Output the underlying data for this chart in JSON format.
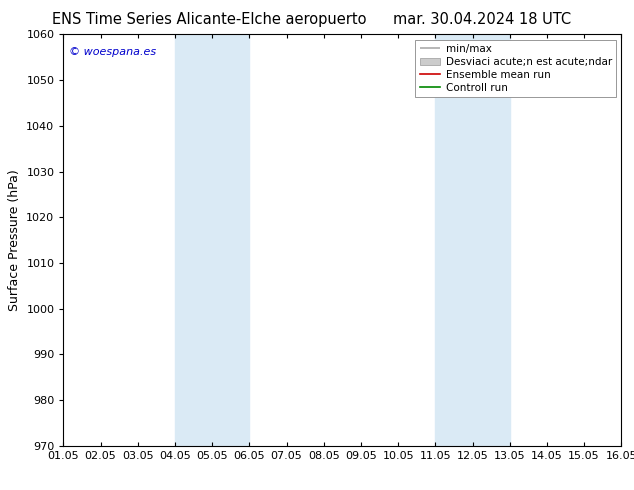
{
  "title_left": "ENS Time Series Alicante-Elche aeropuerto",
  "title_right": "mar. 30.04.2024 18 UTC",
  "ylabel": "Surface Pressure (hPa)",
  "ylim": [
    970,
    1060
  ],
  "yticks": [
    970,
    980,
    990,
    1000,
    1010,
    1020,
    1030,
    1040,
    1050,
    1060
  ],
  "xlim": [
    0,
    15
  ],
  "xtick_positions": [
    0,
    1,
    2,
    3,
    4,
    5,
    6,
    7,
    8,
    9,
    10,
    11,
    12,
    13,
    14,
    15
  ],
  "xtick_labels": [
    "01.05",
    "02.05",
    "03.05",
    "04.05",
    "05.05",
    "06.05",
    "07.05",
    "08.05",
    "09.05",
    "10.05",
    "11.05",
    "12.05",
    "13.05",
    "14.05",
    "15.05",
    "16.05"
  ],
  "shaded_regions": [
    {
      "xmin": 3.0,
      "xmax": 5.0,
      "color": "#daeaf5"
    },
    {
      "xmin": 10.0,
      "xmax": 12.0,
      "color": "#daeaf5"
    }
  ],
  "watermark": "© woespana.es",
  "watermark_color": "#0000cc",
  "legend_label_minmax": "min/max",
  "legend_label_desv": "Desviaci acute;n est acute;ndar",
  "legend_label_ensemble": "Ensemble mean run",
  "legend_label_control": "Controll run",
  "legend_color_minmax": "#aaaaaa",
  "legend_color_desv": "#cccccc",
  "legend_color_ensemble": "#cc0000",
  "legend_color_control": "#008800",
  "background_color": "#ffffff",
  "plot_bg_color": "#ffffff",
  "title_fontsize": 10.5,
  "ylabel_fontsize": 9,
  "tick_fontsize": 8,
  "legend_fontsize": 7.5
}
